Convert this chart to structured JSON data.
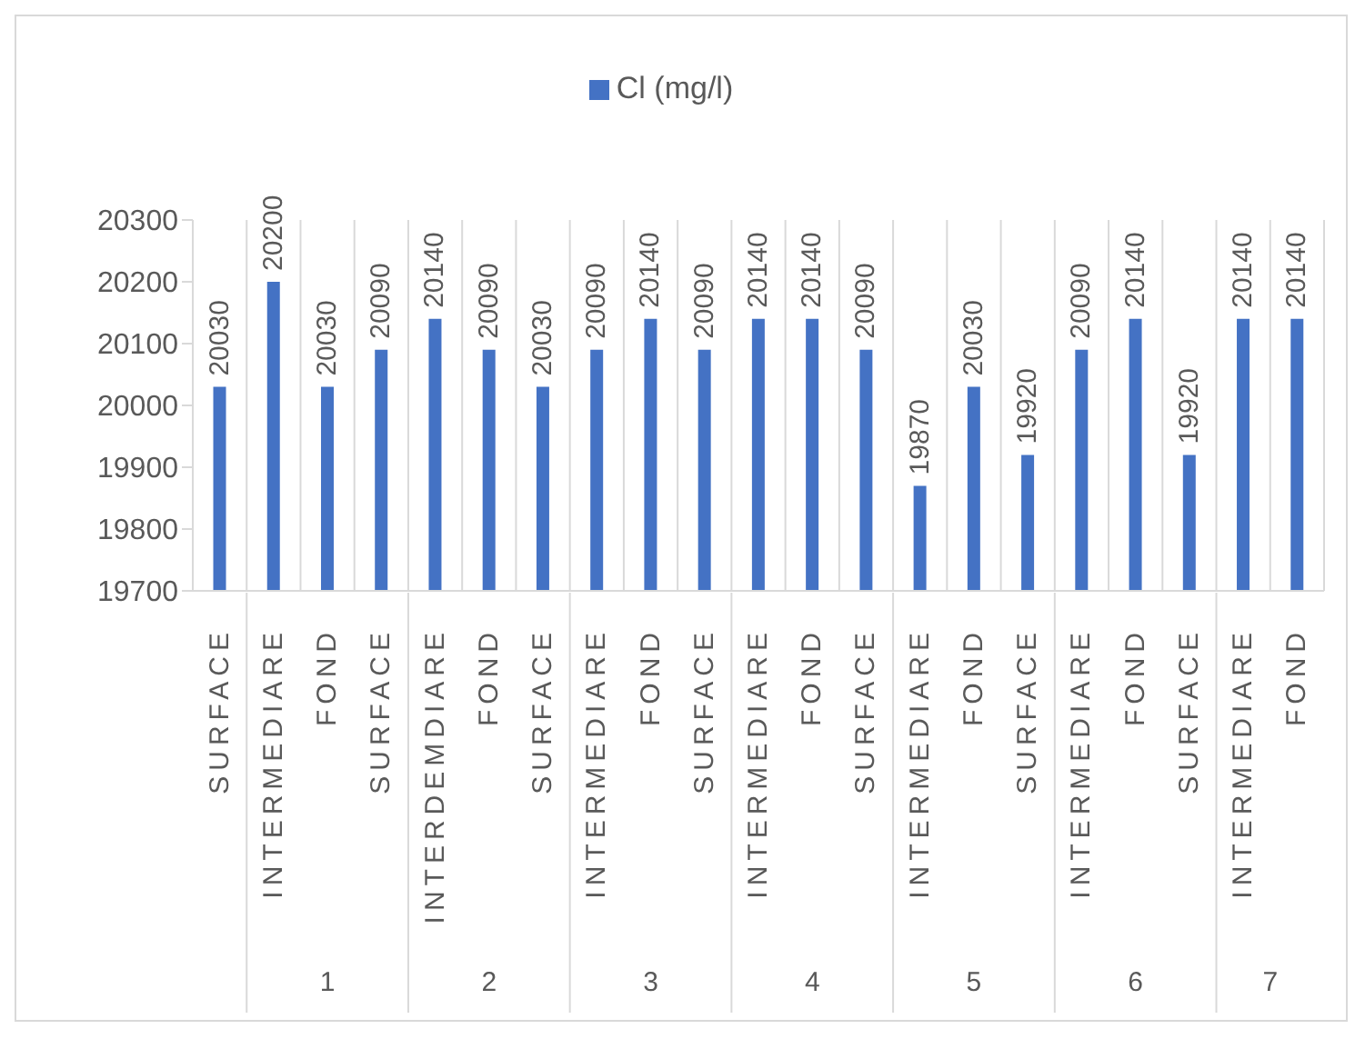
{
  "chart_data": {
    "type": "bar",
    "categories": [
      "SURFACE",
      "INTERMEDIARE",
      "FOND",
      "SURFACE",
      "INTERDEMDIARE",
      "FOND",
      "SURFACE",
      "INTERMEDIARE",
      "FOND",
      "SURFACE",
      "INTERMEDIARE",
      "FOND",
      "SURFACE",
      "INTERMEDIARE",
      "FOND",
      "SURFACE",
      "INTERMEDIARE",
      "FOND",
      "SURFACE",
      "INTERMEDIARE",
      "FOND"
    ],
    "series": [
      {
        "name": "Cl (mg/l)",
        "color": "#4472c4",
        "values": [
          20030,
          20200,
          20030,
          20090,
          20140,
          20090,
          20030,
          20090,
          20140,
          20090,
          20140,
          20140,
          20090,
          19870,
          20030,
          19920,
          20090,
          20140,
          19920,
          20140,
          20140
        ]
      }
    ],
    "ylim": [
      19700,
      20300
    ],
    "yticks": [
      19700,
      19800,
      19900,
      20000,
      20100,
      20200,
      20300
    ],
    "data_labels": true,
    "grid": "x",
    "legend": "top",
    "annotations": [
      "1",
      "2",
      "3",
      "4",
      "5",
      "6",
      "7"
    ]
  }
}
